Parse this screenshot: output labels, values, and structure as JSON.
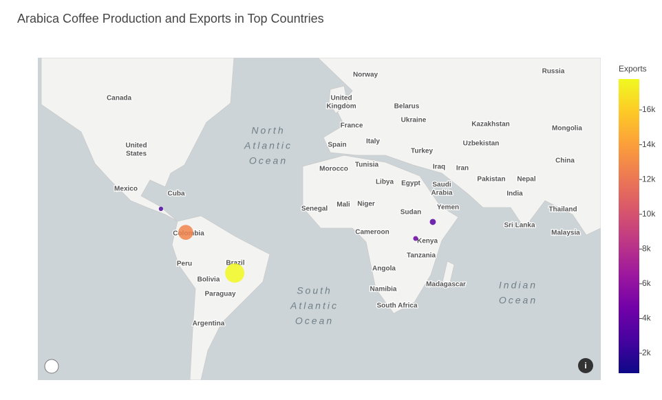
{
  "chart_data": {
    "type": "scatter_map",
    "title": "Arabica Coffee Production and Exports in Top Countries",
    "lon": [
      -85.4,
      -74,
      -51.5,
      39.5,
      31.6
    ],
    "lat": [
      13.5,
      2.8,
      -15.7,
      7.6,
      0
    ],
    "color_values": [
      2900,
      12700,
      17700,
      3400,
      4200
    ],
    "size_values": [
      2000,
      24000,
      40000,
      4000,
      2500
    ],
    "colorbar": {
      "title": "Exports",
      "lim": [
        854,
        17780
      ],
      "ticks": [
        {
          "value": 2000,
          "label": "2k"
        },
        {
          "value": 4000,
          "label": "4k"
        },
        {
          "value": 6000,
          "label": "6k"
        },
        {
          "value": 8000,
          "label": "8k"
        },
        {
          "value": 10000,
          "label": "10k"
        },
        {
          "value": 12000,
          "label": "12k"
        },
        {
          "value": 14000,
          "label": "14k"
        },
        {
          "value": 16000,
          "label": "16k"
        }
      ],
      "colorscale": [
        "#0d0887",
        "#46039f",
        "#7201a8",
        "#9c179e",
        "#bd3786",
        "#d8576b",
        "#ed7953",
        "#fb9f3a",
        "#fdca26",
        "#f0f921"
      ]
    },
    "map_labels": [
      [
        "Norway"
      ],
      [
        "Russia"
      ],
      [
        "Canada"
      ],
      [
        "United",
        "Kingdom"
      ],
      [
        "Belarus"
      ],
      [
        "France"
      ],
      [
        "Ukraine"
      ],
      [
        "Kazakhstan"
      ],
      [
        "Mongolia"
      ],
      [
        "United",
        "States"
      ],
      [
        "Spain"
      ],
      [
        "Italy"
      ],
      [
        "Turkey"
      ],
      [
        "Uzbekistan"
      ],
      [
        "China"
      ],
      [
        "Morocco"
      ],
      [
        "Tunisia"
      ],
      [
        "Iraq"
      ],
      [
        "Iran"
      ],
      [
        "Libya"
      ],
      [
        "Egypt"
      ],
      [
        "Saudi",
        "Arabia"
      ],
      [
        "Pakistan"
      ],
      [
        "Nepal"
      ],
      [
        "Mexico"
      ],
      [
        "Cuba"
      ],
      [
        "India"
      ],
      [
        "Mali"
      ],
      [
        "Niger"
      ],
      [
        "Senegal"
      ],
      [
        "Sudan"
      ],
      [
        "Yemen"
      ],
      [
        "Thailand"
      ],
      [
        "Sri Lanka"
      ],
      [
        "Cameroon"
      ],
      [
        "Kenya"
      ],
      [
        "Malaysia"
      ],
      [
        "Colombia"
      ],
      [
        "Peru"
      ],
      [
        "Brazil"
      ],
      [
        "Tanzania"
      ],
      [
        "Angola"
      ],
      [
        "Bolivia"
      ],
      [
        "Paraguay"
      ],
      [
        "Namibia"
      ],
      [
        "Madagascar"
      ],
      [
        "South Africa"
      ],
      [
        "Argentina"
      ]
    ],
    "ocean_labels": [
      [
        "North",
        "Atlantic",
        "Ocean"
      ],
      [
        "South",
        "Atlantic",
        "Ocean"
      ],
      [
        "Indian",
        "Ocean"
      ]
    ]
  }
}
